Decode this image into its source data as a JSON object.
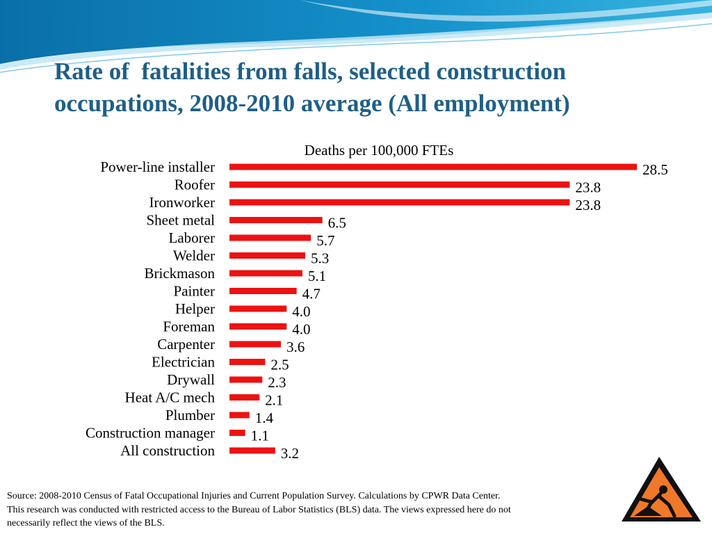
{
  "slide": {
    "title_line1": "Rate of  fatalities from falls, selected construction",
    "title_line2": "occupations, 2008-2010 average (All employment)",
    "source_line1": "Source: 2008-2010 Census of Fatal Occupational Injuries and Current Population Survey. Calculations by CPWR Data Center.",
    "source_line2": "This research was conducted with restricted access to the Bureau of Labor Statistics (BLS) data.  The views expressed here do not",
    "source_line3": "necessarily reflect the views of the BLS.",
    "logo_icon": "fall-hazard-warning-icon"
  },
  "colors": {
    "title": "#1f5f86",
    "bar": "#ee1111",
    "wave_dark": "#0b7bb5",
    "wave_light": "#38b4e0",
    "sign_border": "#111111",
    "sign_fill": "#f0782a"
  },
  "chart_data": {
    "type": "bar",
    "orientation": "horizontal",
    "title": "Deaths per 100,000 FTEs",
    "categories": [
      "Power-line installer",
      "Roofer",
      "Ironworker",
      "Sheet metal",
      "Laborer",
      "Welder",
      "Brickmason",
      "Painter",
      "Helper",
      "Foreman",
      "Carpenter",
      "Electrician",
      "Drywall",
      "Heat A/C mech",
      "Plumber",
      "Construction manager",
      "All construction"
    ],
    "values": [
      28.5,
      23.8,
      23.8,
      6.5,
      5.7,
      5.3,
      5.1,
      4.7,
      4.0,
      4.0,
      3.6,
      2.5,
      2.3,
      2.1,
      1.4,
      1.1,
      3.2
    ],
    "value_labels": [
      "28.5",
      "23.8",
      "23.8",
      "6.5",
      "5.7",
      "5.3",
      "5.1",
      "4.7",
      "4.0",
      "4.0",
      "3.6",
      "2.5",
      "2.3",
      "2.1",
      "1.4",
      "1.1",
      "3.2"
    ],
    "xlim": [
      0,
      28.5
    ],
    "grid": false,
    "legend": "none"
  }
}
